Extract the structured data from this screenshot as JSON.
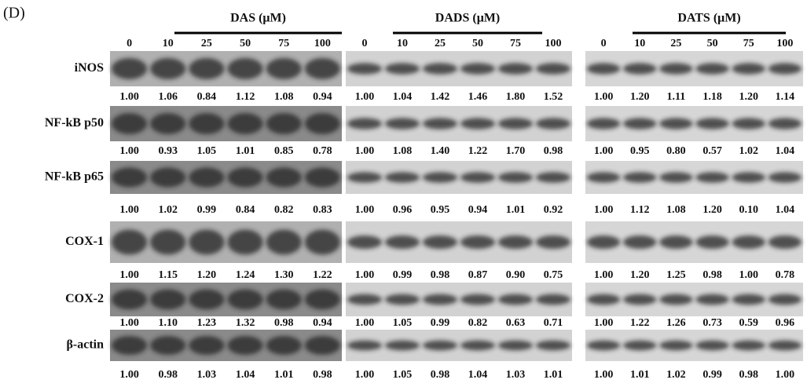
{
  "panel_label": "(D)",
  "groups": [
    {
      "title": "DAS (μM)",
      "concentrations": [
        "0",
        "10",
        "25",
        "50",
        "75",
        "100"
      ]
    },
    {
      "title": "DADS (μM)",
      "concentrations": [
        "0",
        "10",
        "25",
        "50",
        "75",
        "100"
      ]
    },
    {
      "title": "DATS (μM)",
      "concentrations": [
        "0",
        "10",
        "25",
        "50",
        "75",
        "100"
      ]
    }
  ],
  "rows": [
    {
      "label": "iNOS",
      "values": [
        [
          "1.00",
          "1.06",
          "0.84",
          "1.12",
          "1.08",
          "0.94"
        ],
        [
          "1.00",
          "1.04",
          "1.42",
          "1.46",
          "1.80",
          "1.52"
        ],
        [
          "1.00",
          "1.20",
          "1.11",
          "1.18",
          "1.20",
          "1.14"
        ]
      ]
    },
    {
      "label": "NF-kB p50",
      "values": [
        [
          "1.00",
          "0.93",
          "1.05",
          "1.01",
          "0.85",
          "0.78"
        ],
        [
          "1.00",
          "1.08",
          "1.40",
          "1.22",
          "1.70",
          "0.98"
        ],
        [
          "1.00",
          "0.95",
          "0.80",
          "0.57",
          "1.02",
          "1.04"
        ]
      ]
    },
    {
      "label": "NF-kB p65",
      "values": [
        [
          "1.00",
          "1.02",
          "0.99",
          "0.84",
          "0.82",
          "0.83"
        ],
        [
          "1.00",
          "0.96",
          "0.95",
          "0.94",
          "1.01",
          "0.92"
        ],
        [
          "1.00",
          "1.12",
          "1.08",
          "1.20",
          "0.10",
          "1.04"
        ]
      ]
    },
    {
      "label": "COX-1",
      "values": [
        [
          "1.00",
          "1.15",
          "1.20",
          "1.24",
          "1.30",
          "1.22"
        ],
        [
          "1.00",
          "0.99",
          "0.98",
          "0.87",
          "0.90",
          "0.75"
        ],
        [
          "1.00",
          "1.20",
          "1.25",
          "0.98",
          "1.00",
          "0.78"
        ]
      ]
    },
    {
      "label": "COX-2",
      "values": [
        [
          "1.00",
          "1.10",
          "1.23",
          "1.32",
          "0.98",
          "0.94"
        ],
        [
          "1.00",
          "1.05",
          "0.99",
          "0.82",
          "0.63",
          "0.71"
        ],
        [
          "1.00",
          "1.22",
          "1.26",
          "0.73",
          "0.59",
          "0.96"
        ]
      ]
    },
    {
      "label": "β-actin",
      "values": [
        [
          "1.00",
          "0.98",
          "1.03",
          "1.04",
          "1.01",
          "0.98"
        ],
        [
          "1.00",
          "1.05",
          "0.98",
          "1.04",
          "1.03",
          "1.01"
        ],
        [
          "1.00",
          "1.01",
          "1.02",
          "0.99",
          "0.98",
          "1.00"
        ]
      ]
    }
  ]
}
